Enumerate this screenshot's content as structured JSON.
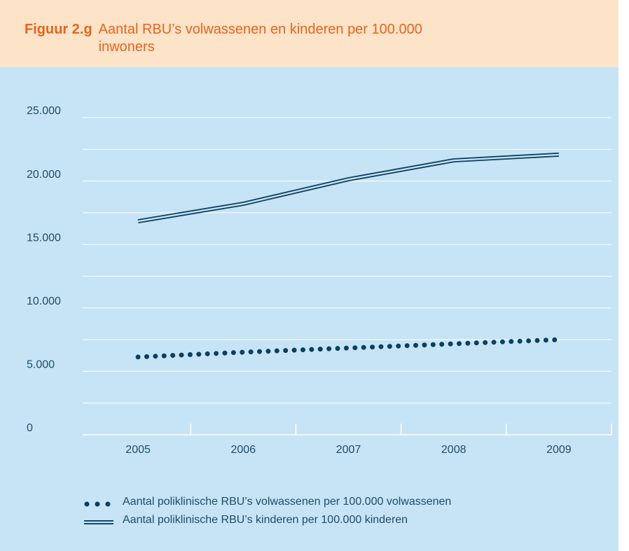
{
  "chart_data": {
    "type": "line",
    "figure_label": "Figuur 2.g",
    "title": "Aantal RBU’s volwassenen en kinderen per 100.000 inwoners",
    "categories": [
      "2005",
      "2006",
      "2007",
      "2008",
      "2009"
    ],
    "series": [
      {
        "name": "Aantal poliklinische RBU’s volwassenen per 100.000 volwassenen",
        "color": "#0d3f5f",
        "style": "dotted",
        "values": [
          6130,
          6510,
          6840,
          7170,
          7500
        ]
      },
      {
        "name": "Aantal poliklinische RBU’s kinderen per 100.000 kinderen",
        "color": "#0d3f5f",
        "style": "double",
        "values": [
          16830,
          18210,
          20140,
          21630,
          22080
        ]
      }
    ],
    "ylim": [
      0,
      25000
    ],
    "yticks": [
      {
        "value": 0,
        "label": "0"
      },
      {
        "value": 5000,
        "label": "5.000"
      },
      {
        "value": 10000,
        "label": "10.000"
      },
      {
        "value": 15000,
        "label": "15.000"
      },
      {
        "value": 20000,
        "label": "20.000"
      },
      {
        "value": 25000,
        "label": "25.000"
      }
    ],
    "minor_gridlines": [
      2500,
      7500,
      12500,
      17500,
      22500
    ],
    "grid": true
  }
}
